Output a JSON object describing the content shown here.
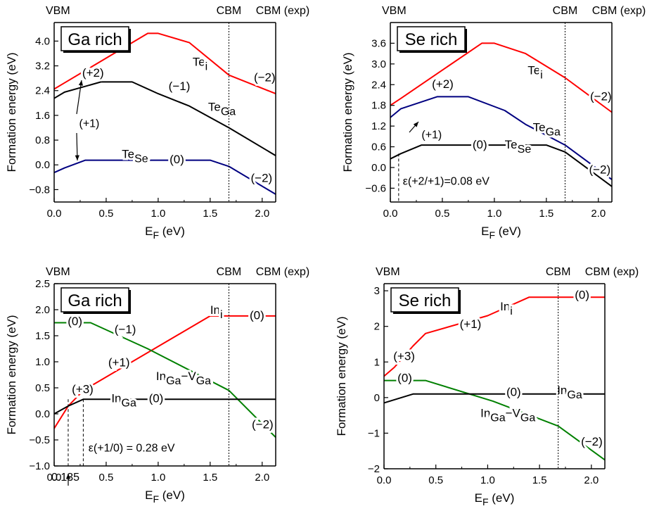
{
  "chart_data": [
    {
      "type": "line",
      "box_label": "Ga rich",
      "xlabel": "E_F (eV)",
      "ylabel": "Formation energy (eV)",
      "xlim": [
        0,
        2.13
      ],
      "ylim": [
        -1.2,
        4.6
      ],
      "xticks": [
        0.0,
        0.5,
        1.0,
        1.5,
        2.0
      ],
      "xtick_labels": [
        "0.0",
        "0.5",
        "1.0",
        "1.5",
        "2.0"
      ],
      "yticks": [
        -0.8,
        0.0,
        0.8,
        1.6,
        2.4,
        3.2,
        4.0
      ],
      "ytick_labels": [
        "-0.8",
        "0.0",
        "0.8",
        "1.6",
        "2.4",
        "3.2",
        "4.0"
      ],
      "headers": {
        "vbm": "VBM",
        "cbm": "CBM",
        "cbm_exp": "CBM (exp)"
      },
      "cbm": 1.68,
      "cbm_exp": 2.13,
      "series": [
        {
          "color": "#ff0000",
          "x": [
            0.0,
            0.1,
            0.9,
            1.0,
            1.3,
            1.68,
            2.13
          ],
          "y": [
            2.45,
            2.65,
            4.25,
            4.25,
            3.95,
            2.9,
            2.3
          ],
          "labels": [
            {
              "text": "Te",
              "sub": "i",
              "x": 1.33,
              "y": 3.2
            },
            {
              "text": "(+2)",
              "x": 0.27,
              "y": 2.85
            },
            {
              "text": "(-2)",
              "x": 1.92,
              "y": 2.7
            }
          ]
        },
        {
          "color": "#000000",
          "x": [
            0.0,
            0.1,
            0.45,
            0.75,
            1.0,
            1.3,
            1.68,
            2.13
          ],
          "y": [
            2.15,
            2.35,
            2.68,
            2.68,
            2.3,
            1.9,
            1.2,
            0.3
          ],
          "labels": [
            {
              "text": "(-1)",
              "x": 1.1,
              "y": 2.42
            },
            {
              "text": "Te",
              "sub": "Ga",
              "x": 1.48,
              "y": 1.75
            }
          ]
        },
        {
          "color": "#000080",
          "x": [
            0.0,
            0.1,
            0.3,
            1.5,
            1.68,
            2.13
          ],
          "y": [
            -0.25,
            -0.1,
            0.15,
            0.15,
            -0.05,
            -0.95
          ],
          "labels": [
            {
              "text": "Te",
              "sub": "Se",
              "x": 0.65,
              "y": 0.22
            },
            {
              "text": "(0)",
              "x": 1.11,
              "y": 0.05
            },
            {
              "text": "(-2)",
              "x": 1.89,
              "y": -0.55
            }
          ]
        }
      ],
      "annotations": [
        {
          "text": "(+1)",
          "x": 0.24,
          "y": 1.22
        }
      ]
    },
    {
      "type": "line",
      "box_label": "Se rich",
      "xlabel": "E_F (eV)",
      "ylabel": "Formation energy (eV)",
      "xlim": [
        0,
        2.13
      ],
      "ylim": [
        -1.0,
        4.2
      ],
      "xticks": [
        0.0,
        0.5,
        1.0,
        1.5,
        2.0
      ],
      "xtick_labels": [
        "0.0",
        "0.5",
        "1.0",
        "1.5",
        "2.0"
      ],
      "yticks": [
        -0.6,
        0.0,
        0.6,
        1.2,
        1.8,
        2.4,
        3.0,
        3.6
      ],
      "ytick_labels": [
        "-0.6",
        "0.0",
        "0.6",
        "1.2",
        "1.8",
        "2.4",
        "3.0",
        "3.6"
      ],
      "headers": {
        "vbm": "VBM",
        "cbm": "CBM",
        "cbm_exp": "CBM (exp)"
      },
      "cbm": 1.68,
      "cbm_exp": 2.13,
      "series": [
        {
          "color": "#ff0000",
          "x": [
            0.0,
            0.1,
            0.88,
            1.0,
            1.3,
            1.68,
            2.13
          ],
          "y": [
            1.8,
            2.0,
            3.6,
            3.6,
            3.3,
            2.6,
            1.6
          ],
          "labels": [
            {
              "text": "Te",
              "sub": "i",
              "x": 1.32,
              "y": 2.7
            },
            {
              "text": "(+2)",
              "x": 0.4,
              "y": 2.3
            },
            {
              "text": "(-2)",
              "x": 1.92,
              "y": 1.95
            }
          ]
        },
        {
          "color": "#000080",
          "x": [
            0.0,
            0.1,
            0.45,
            0.75,
            1.1,
            1.3,
            1.68,
            2.13
          ],
          "y": [
            1.45,
            1.7,
            2.05,
            2.05,
            1.65,
            1.25,
            0.65,
            -0.35
          ],
          "labels": [
            {
              "text": "Te",
              "sub": "Ga",
              "x": 1.37,
              "y": 1.05
            }
          ]
        },
        {
          "color": "#000000",
          "x": [
            0.0,
            0.1,
            0.3,
            1.5,
            1.68,
            2.13
          ],
          "y": [
            0.25,
            0.4,
            0.65,
            0.65,
            0.45,
            -0.55
          ],
          "labels": [
            {
              "text": "(0)",
              "x": 0.79,
              "y": 0.55
            },
            {
              "text": "Te",
              "sub": "Se",
              "x": 1.1,
              "y": 0.55
            },
            {
              "text": "(-2)",
              "x": 1.91,
              "y": -0.17
            }
          ]
        }
      ],
      "annotations": [
        {
          "text": "(+1)",
          "x": 0.3,
          "y": 0.85
        },
        {
          "text": "ε(+2/+1)=0.08 eV",
          "x": 0.12,
          "y": -0.5
        }
      ],
      "marker_lines": [
        0.08
      ]
    },
    {
      "type": "line",
      "box_label": "Ga rich",
      "xlabel": "E_F (eV)",
      "ylabel": "Formation energy (eV)",
      "xlim": [
        0,
        2.13
      ],
      "ylim": [
        -1.0,
        2.5
      ],
      "xticks": [
        0.0,
        0.5,
        1.0,
        1.5,
        2.0
      ],
      "xtick_labels": [
        "0.0",
        "0.5",
        "1.0",
        "1.5",
        "2.0"
      ],
      "yticks": [
        -1.0,
        -0.5,
        0.0,
        0.5,
        1.0,
        1.5,
        2.0,
        2.5
      ],
      "ytick_labels": [
        "-1.0",
        "-0.5",
        "0.0",
        "0.5",
        "1.0",
        "1.5",
        "2.0",
        "2.5"
      ],
      "headers": {
        "vbm": "VBM",
        "cbm": "CBM",
        "cbm_exp": "CBM (exp)"
      },
      "cbm": 1.68,
      "cbm_exp": 2.13,
      "series": [
        {
          "color": "#ff0000",
          "x": [
            0.0,
            0.135,
            0.28,
            1.5,
            2.13
          ],
          "y": [
            -0.28,
            0.15,
            0.45,
            1.88,
            1.88
          ],
          "labels": [
            {
              "text": "In",
              "sub": "i",
              "x": 1.5,
              "y": 1.92
            },
            {
              "text": "(0)",
              "x": 1.88,
              "y": 1.82
            },
            {
              "text": "(+1)",
              "x": 0.52,
              "y": 0.91
            },
            {
              "text": "(+3)",
              "x": 0.17,
              "y": 0.4
            }
          ]
        },
        {
          "color": "#008000",
          "x": [
            0.0,
            0.35,
            0.9,
            1.68,
            2.13
          ],
          "y": [
            1.75,
            1.75,
            1.25,
            0.45,
            -0.45
          ],
          "labels": [
            {
              "text": "(0)",
              "x": 0.13,
              "y": 1.7
            },
            {
              "text": "(-1)",
              "x": 0.58,
              "y": 1.55
            },
            {
              "text": "In",
              "sub": "Ga",
              "text2": "-V",
              "sub2": "Ga",
              "x": 0.98,
              "y": 0.65
            },
            {
              "text": "(-2)",
              "x": 1.9,
              "y": -0.28
            }
          ]
        },
        {
          "color": "#000000",
          "x": [
            0.0,
            0.135,
            0.28,
            2.13
          ],
          "y": [
            0.0,
            0.15,
            0.28,
            0.28
          ],
          "labels": [
            {
              "text": "In",
              "sub": "Ga",
              "x": 0.55,
              "y": 0.22
            },
            {
              "text": "(0)",
              "x": 0.91,
              "y": 0.22
            }
          ]
        }
      ],
      "annotations": [
        {
          "text": "ε(+1/0) = 0.28 eV",
          "x": 0.33,
          "y": -0.72
        },
        {
          "text": "0.135",
          "x": 0.0,
          "y": -1.32
        }
      ],
      "marker_lines": [
        0.135,
        0.28
      ]
    },
    {
      "type": "line",
      "box_label": "Se rich",
      "xlabel": "E_F (eV)",
      "ylabel": "Formation energy (eV)",
      "xlim": [
        0,
        2.13
      ],
      "ylim": [
        -2.0,
        3.2
      ],
      "xticks": [
        0.0,
        0.5,
        1.0,
        1.5,
        2.0
      ],
      "xtick_labels": [
        "0.0",
        "0.5",
        "1.0",
        "1.5",
        "2.0"
      ],
      "yticks": [
        -2,
        -1,
        0,
        1,
        2,
        3
      ],
      "ytick_labels": [
        "-2",
        "-1",
        "0",
        "1",
        "2",
        "3"
      ],
      "headers": {
        "vbm": "VBM",
        "cbm": "CBM",
        "cbm_exp": "CBM (exp)"
      },
      "cbm": 1.68,
      "cbm_exp": 2.13,
      "series": [
        {
          "color": "#ff0000",
          "x": [
            0.0,
            0.1,
            0.28,
            0.4,
            1.0,
            1.4,
            2.13
          ],
          "y": [
            0.6,
            0.85,
            1.45,
            1.8,
            2.3,
            2.82,
            2.82
          ],
          "labels": [
            {
              "text": "In",
              "sub": "i",
              "x": 1.12,
              "y": 2.45
            },
            {
              "text": "(+1)",
              "x": 0.73,
              "y": 1.95
            },
            {
              "text": "(+3)",
              "x": 0.09,
              "y": 1.05
            },
            {
              "text": "(0)",
              "x": 1.84,
              "y": 2.77
            }
          ]
        },
        {
          "color": "#008000",
          "x": [
            0.0,
            0.4,
            1.05,
            1.68,
            2.13
          ],
          "y": [
            0.48,
            0.48,
            -0.1,
            -0.8,
            -1.75
          ],
          "labels": [
            {
              "text": "(0)",
              "x": 0.13,
              "y": 0.44
            },
            {
              "text": "In",
              "sub": "Ga",
              "text2": "-V",
              "sub2": "Ga",
              "x": 0.93,
              "y": -0.55
            },
            {
              "text": "(-2)",
              "x": 1.9,
              "y": -1.35
            }
          ]
        },
        {
          "color": "#000000",
          "x": [
            0.0,
            0.28,
            2.13
          ],
          "y": [
            -0.15,
            0.1,
            0.1
          ],
          "labels": [
            {
              "text": "(0)",
              "x": 1.18,
              "y": 0.05
            },
            {
              "text": "In",
              "sub": "Ga",
              "x": 1.67,
              "y": 0.1
            }
          ]
        }
      ],
      "annotations": []
    }
  ]
}
